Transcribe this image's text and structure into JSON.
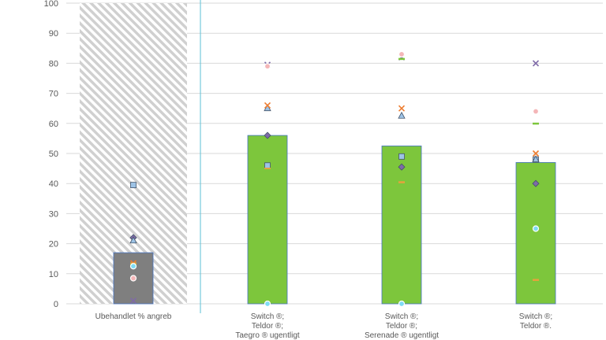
{
  "chart_data": {
    "type": "bar",
    "title": "",
    "xlabel": "",
    "ylabel": "",
    "ylim": [
      0,
      100
    ],
    "yticks": [
      0,
      10,
      20,
      30,
      40,
      50,
      60,
      70,
      80,
      90,
      100
    ],
    "grid": true,
    "legend": "none",
    "categories": [
      [
        "Ubehandlet % angreb"
      ],
      [
        "Switch ®;",
        "Teldor ®;",
        "Taegro ® ugentligt"
      ],
      [
        "Switch ®;",
        "Teldor ®;",
        "Serenade ® ugentligt"
      ],
      [
        "Switch ®;",
        "Teldor ®."
      ]
    ],
    "values": [
      17,
      56,
      52.5,
      47
    ],
    "bar_colors": [
      "#7f7f7f",
      "#7dc63c",
      "#7dc63c",
      "#7dc63c"
    ],
    "untreated_band_category": 0,
    "series": [
      {
        "marker": "diamond",
        "color": "#7f6aa8",
        "values": [
          22,
          56,
          45.5,
          40
        ]
      },
      {
        "marker": "square",
        "color": "#9dc3e6",
        "values": [
          39.5,
          46,
          49,
          48
        ]
      },
      {
        "marker": "triangle",
        "color": "#9dc3e6",
        "values": [
          21,
          65,
          62.5,
          48
        ]
      },
      {
        "marker": "x",
        "color": "#ed7d31",
        "values": [
          13.5,
          66,
          65,
          50
        ]
      },
      {
        "marker": "x",
        "color": "#7f6aa8",
        "values": [
          1,
          79.5,
          82,
          80
        ]
      },
      {
        "marker": "circle",
        "color": "#f4b6b8",
        "values": [
          8.5,
          79,
          83,
          64
        ]
      },
      {
        "marker": "dash",
        "color": "#e6a23c",
        "values": [
          13.5,
          45,
          40.5,
          8
        ]
      },
      {
        "marker": "dash",
        "color": "#7dc63c",
        "values": [
          13,
          44.5,
          81.5,
          60
        ]
      },
      {
        "marker": "circle",
        "color": "#7fdcf5",
        "values": [
          12.5,
          0,
          0,
          25
        ]
      }
    ]
  }
}
